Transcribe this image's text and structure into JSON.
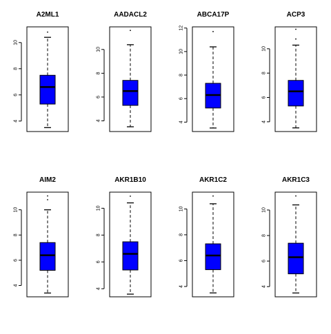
{
  "chart_data": [
    {
      "type": "box",
      "title": "A2ML1",
      "ylim": [
        3.2,
        11.2
      ],
      "yticks": [
        4,
        6,
        8,
        10
      ],
      "box": {
        "whisker_low": 3.5,
        "q1": 5.3,
        "median": 6.6,
        "q3": 7.5,
        "whisker_high": 10.4,
        "outliers": [
          10.8
        ]
      }
    },
    {
      "type": "box",
      "title": "AADACL2",
      "ylim": [
        3.1,
        11.9
      ],
      "yticks": [
        4,
        6,
        8,
        10
      ],
      "box": {
        "whisker_low": 3.5,
        "q1": 5.3,
        "median": 6.5,
        "q3": 7.4,
        "whisker_high": 10.4,
        "outliers": [
          11.6
        ]
      }
    },
    {
      "type": "box",
      "title": "ABCA17P",
      "ylim": [
        3.2,
        12.1
      ],
      "yticks": [
        4,
        6,
        8,
        10,
        12
      ],
      "box": {
        "whisker_low": 3.5,
        "q1": 5.2,
        "median": 6.3,
        "q3": 7.3,
        "whisker_high": 10.4,
        "outliers": [
          11.7
        ]
      }
    },
    {
      "type": "box",
      "title": "ACP3",
      "ylim": [
        3.2,
        11.8
      ],
      "yticks": [
        4,
        6,
        8,
        10
      ],
      "box": {
        "whisker_low": 3.5,
        "q1": 5.3,
        "median": 6.5,
        "q3": 7.4,
        "whisker_high": 10.3,
        "outliers": [
          10.8,
          11.6
        ]
      }
    },
    {
      "type": "box",
      "title": "AIM2",
      "ylim": [
        3.1,
        11.4
      ],
      "yticks": [
        4,
        6,
        8,
        10
      ],
      "box": {
        "whisker_low": 3.4,
        "q1": 5.2,
        "median": 6.4,
        "q3": 7.4,
        "whisker_high": 10.0,
        "outliers": [
          10.8,
          11.1
        ]
      }
    },
    {
      "type": "box",
      "title": "AKR1B10",
      "ylim": [
        3.4,
        11.2
      ],
      "yticks": [
        4,
        6,
        8,
        10
      ],
      "box": {
        "whisker_low": 3.6,
        "q1": 5.4,
        "median": 6.6,
        "q3": 7.5,
        "whisker_high": 10.4,
        "outliers": [
          10.9
        ]
      }
    },
    {
      "type": "box",
      "title": "AKR1C2",
      "ylim": [
        3.2,
        11.3
      ],
      "yticks": [
        4,
        6,
        8,
        10
      ],
      "box": {
        "whisker_low": 3.5,
        "q1": 5.3,
        "median": 6.4,
        "q3": 7.3,
        "whisker_high": 10.4,
        "outliers": [
          11.0
        ]
      }
    },
    {
      "type": "box",
      "title": "AKR1C3",
      "ylim": [
        3.2,
        11.4
      ],
      "yticks": [
        4,
        6,
        8,
        10
      ],
      "box": {
        "whisker_low": 3.5,
        "q1": 5.0,
        "median": 6.3,
        "q3": 7.4,
        "whisker_high": 10.4,
        "outliers": [
          11.1
        ]
      }
    }
  ],
  "colors": {
    "box_fill": "#0000ff",
    "stroke": "#000000",
    "background": "#ffffff"
  }
}
